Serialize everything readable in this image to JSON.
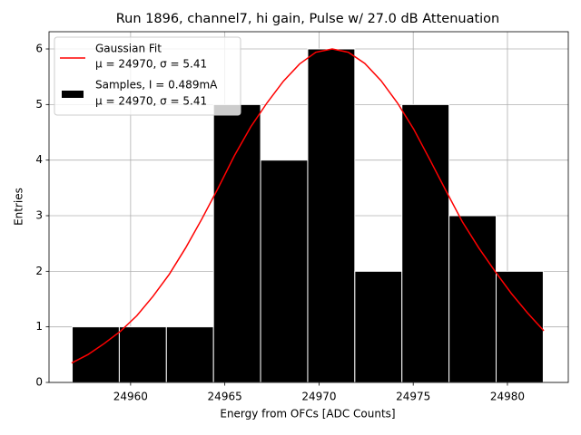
{
  "chart_data": {
    "type": "histogram",
    "title": "Run 1896, channel7, hi gain, Pulse w/ 27.0 dB Attenuation",
    "xlabel": "Energy from OFCs [ADC Counts]",
    "ylabel": "Entries",
    "xlim": [
      24955.67,
      24983.23
    ],
    "ylim": [
      0,
      6.31
    ],
    "xticks": [
      24960,
      24965,
      24970,
      24975,
      24980
    ],
    "yticks": [
      0,
      1,
      2,
      3,
      4,
      5,
      6
    ],
    "grid": true,
    "legend": "upper left",
    "name": "Samples, I = 0.489mA",
    "label_detail": "μ = 24970, σ = 5.41",
    "color": "#000000",
    "edgecolor": "#ffffff",
    "bins": [
      24956.9,
      24959.4,
      24961.9,
      24964.4,
      24966.9,
      24969.4,
      24971.9,
      24974.4,
      24976.9,
      24979.4,
      24981.9
    ],
    "counts": [
      1,
      1,
      1,
      5,
      4,
      6,
      2,
      5,
      3,
      2
    ],
    "fit": {
      "type": "line",
      "name": "Gaussian Fit",
      "label_detail": "μ = 24970, σ = 5.41",
      "color": "#ff0000",
      "x": [
        24956.87,
        24957.73,
        24958.6,
        24959.46,
        24960.33,
        24961.19,
        24962.06,
        24962.92,
        24963.78,
        24964.65,
        24965.51,
        24966.38,
        24967.24,
        24968.11,
        24968.97,
        24969.83,
        24970.7,
        24971.56,
        24972.43,
        24973.29,
        24974.16,
        24975.02,
        24975.88,
        24976.75,
        24977.61,
        24978.48,
        24979.34,
        24980.21,
        24981.07,
        24981.93
      ],
      "y": [
        0.35,
        0.5,
        0.7,
        0.92,
        1.2,
        1.55,
        1.95,
        2.42,
        2.94,
        3.5,
        4.08,
        4.6,
        5.03,
        5.42,
        5.73,
        5.94,
        6.0,
        5.94,
        5.74,
        5.43,
        5.03,
        4.56,
        4.01,
        3.44,
        2.89,
        2.42,
        2.0,
        1.6,
        1.25,
        0.93
      ]
    }
  }
}
